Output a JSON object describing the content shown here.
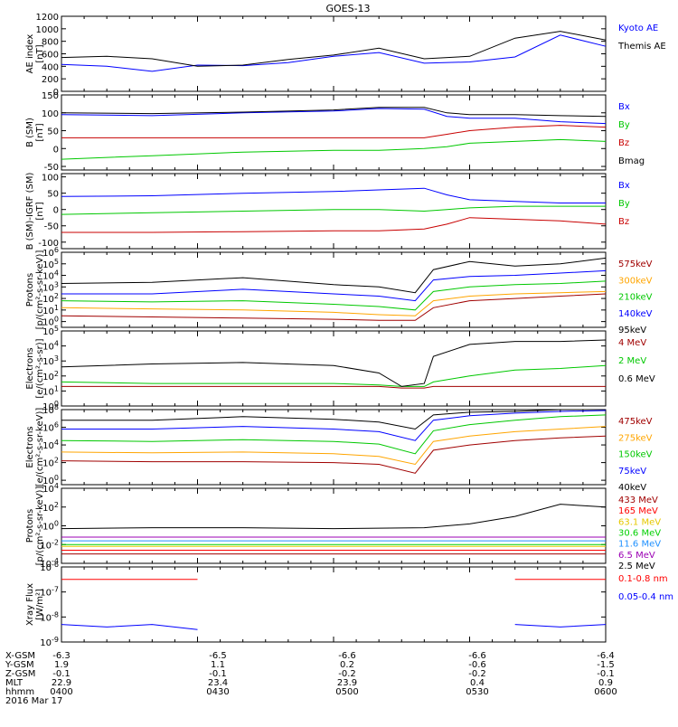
{
  "title": "GOES-13",
  "colors": {
    "black": "#000000",
    "blue": "#0000ff",
    "green": "#00c800",
    "red": "#c80000",
    "orange": "#ffa500",
    "gold": "#e6c800",
    "lime": "#00d000",
    "sky": "#1e90ff",
    "purple": "#9b00b4",
    "darkred": "#a00000",
    "brightred": "#ff0000"
  },
  "footer": {
    "row_labels": [
      "X-GSM",
      "Y-GSM",
      "Z-GSM",
      "MLT",
      "hhmm",
      "2016 Mar 17"
    ],
    "columns": [
      {
        "x": "-6.3",
        "y": "1.9",
        "z": "-0.1",
        "mlt": "22.9",
        "hhmm": "0400"
      },
      {
        "x": "-6.5",
        "y": "1.1",
        "z": "-0.1",
        "mlt": "23.4",
        "hhmm": "0430"
      },
      {
        "x": "-6.6",
        "y": "0.2",
        "z": "-0.2",
        "mlt": "23.9",
        "hhmm": "0500"
      },
      {
        "x": "-6.6",
        "y": "-0.6",
        "z": "-0.2",
        "mlt": "0.4",
        "hhmm": "0530"
      },
      {
        "x": "-6.4",
        "y": "-1.5",
        "z": "-0.1",
        "mlt": "0.9",
        "hhmm": "0600"
      }
    ]
  },
  "chart_data": [
    {
      "type": "line",
      "ylabel": "AE index\n[nT]",
      "ylim": [
        0,
        1200
      ],
      "yscale": "linear",
      "yticks": [
        "1200",
        "1000",
        "800",
        "600",
        "400",
        "200",
        "0"
      ],
      "x": [
        0,
        10,
        20,
        30,
        40,
        50,
        60,
        70,
        80,
        90,
        100,
        110,
        120
      ],
      "series": [
        {
          "name": "Kyoto AE",
          "color": "blue",
          "values": [
            430,
            400,
            320,
            420,
            410,
            460,
            560,
            620,
            450,
            470,
            550,
            900,
            720
          ]
        },
        {
          "name": "Themis AE",
          "color": "black",
          "values": [
            540,
            560,
            520,
            400,
            420,
            510,
            580,
            690,
            520,
            560,
            850,
            960,
            820
          ]
        }
      ]
    },
    {
      "type": "line",
      "ylabel": "B (SM)\n[nT]",
      "ylim": [
        -60,
        150
      ],
      "yscale": "linear",
      "yticks": [
        "150",
        "100",
        "50",
        "0",
        "-50"
      ],
      "x": [
        0,
        20,
        40,
        60,
        70,
        80,
        85,
        90,
        100,
        110,
        120
      ],
      "series": [
        {
          "name": "Bx",
          "color": "blue",
          "values": [
            95,
            92,
            100,
            105,
            112,
            110,
            90,
            85,
            85,
            75,
            70
          ]
        },
        {
          "name": "By",
          "color": "green",
          "values": [
            -30,
            -20,
            -10,
            -5,
            -5,
            0,
            5,
            15,
            20,
            25,
            20
          ]
        },
        {
          "name": "Bz",
          "color": "red",
          "values": [
            30,
            30,
            30,
            30,
            30,
            30,
            40,
            50,
            60,
            65,
            60
          ]
        },
        {
          "name": "Bmag",
          "color": "black",
          "values": [
            100,
            98,
            102,
            108,
            115,
            115,
            100,
            95,
            95,
            92,
            90
          ]
        }
      ]
    },
    {
      "type": "line",
      "ylabel": "B (SM)-IGRF (SM)\n[nT]",
      "ylim": [
        -120,
        110
      ],
      "yscale": "linear",
      "yticks": [
        "100",
        "50",
        "0",
        "-50",
        "-100"
      ],
      "x": [
        0,
        20,
        40,
        60,
        70,
        80,
        85,
        90,
        100,
        110,
        120
      ],
      "series": [
        {
          "name": "Bx",
          "color": "blue",
          "values": [
            40,
            42,
            50,
            55,
            60,
            65,
            45,
            30,
            25,
            20,
            20
          ]
        },
        {
          "name": "By",
          "color": "green",
          "values": [
            -15,
            -10,
            -5,
            0,
            0,
            -5,
            0,
            5,
            10,
            10,
            10
          ]
        },
        {
          "name": "Bz",
          "color": "red",
          "values": [
            -70,
            -70,
            -68,
            -65,
            -65,
            -60,
            -45,
            -25,
            -30,
            -35,
            -45
          ]
        }
      ]
    },
    {
      "type": "line",
      "ylabel": "Protons\n[p/(cm²-s-sr-keV)]",
      "ylim": [
        -0.5,
        6
      ],
      "yscale": "log",
      "yticks": [
        "10^6",
        "10^5",
        "10^4",
        "10^3",
        "10^2",
        "10^1",
        "10^0"
      ],
      "x": [
        0,
        20,
        40,
        60,
        70,
        78,
        82,
        90,
        100,
        110,
        120
      ],
      "series": [
        {
          "name": "575keV",
          "color": "darkred",
          "values": [
            0.5,
            0.4,
            0.3,
            0.2,
            0.1,
            0.1,
            1.2,
            1.8,
            2.0,
            2.2,
            2.4
          ]
        },
        {
          "name": "300keV",
          "color": "orange",
          "values": [
            1.2,
            1.1,
            1.0,
            0.8,
            0.6,
            0.5,
            1.8,
            2.2,
            2.4,
            2.5,
            2.6
          ]
        },
        {
          "name": "210keV",
          "color": "green",
          "values": [
            1.8,
            1.7,
            1.8,
            1.5,
            1.3,
            1.0,
            2.6,
            3.0,
            3.2,
            3.3,
            3.5
          ]
        },
        {
          "name": "140keV",
          "color": "blue",
          "values": [
            2.4,
            2.4,
            2.8,
            2.4,
            2.2,
            1.8,
            3.6,
            3.9,
            4.0,
            4.2,
            4.4
          ]
        },
        {
          "name": "95keV",
          "color": "black",
          "values": [
            3.3,
            3.4,
            3.8,
            3.2,
            3.0,
            2.5,
            4.5,
            5.2,
            4.8,
            5.0,
            5.5
          ]
        }
      ]
    },
    {
      "type": "line",
      "ylabel": "Electrons\n[e/(cm²-s-sr)]",
      "ylim": [
        0,
        5
      ],
      "yscale": "log",
      "yticks": [
        "10^5",
        "10^4",
        "10^3",
        "10^2",
        "10^1",
        "10^0"
      ],
      "x": [
        0,
        20,
        40,
        60,
        70,
        75,
        80,
        82,
        90,
        100,
        110,
        120
      ],
      "series": [
        {
          "name": "4 MeV",
          "color": "darkred",
          "values": [
            1.3,
            1.3,
            1.3,
            1.3,
            1.3,
            1.2,
            1.2,
            1.3,
            1.3,
            1.3,
            1.3,
            1.3
          ]
        },
        {
          "name": "2 MeV",
          "color": "green",
          "values": [
            1.6,
            1.5,
            1.5,
            1.5,
            1.4,
            1.3,
            1.3,
            1.6,
            2.0,
            2.4,
            2.5,
            2.7
          ]
        },
        {
          "name": "0.6 MeV",
          "color": "black",
          "values": [
            2.6,
            2.8,
            2.9,
            2.7,
            2.2,
            1.3,
            1.5,
            3.3,
            4.1,
            4.3,
            4.3,
            4.4
          ]
        }
      ]
    },
    {
      "type": "line",
      "ylabel": "Electrons\n[e/(cm²-s-sr-keV)]",
      "ylim": [
        -0.5,
        8
      ],
      "yscale": "log",
      "yticks": [
        "10^8",
        "10^6",
        "10^4",
        "10^2",
        "10^0"
      ],
      "x": [
        0,
        20,
        40,
        60,
        70,
        78,
        82,
        90,
        100,
        110,
        120
      ],
      "series": [
        {
          "name": "475keV",
          "color": "darkred",
          "values": [
            2.2,
            2.1,
            2.1,
            2.0,
            1.8,
            0.8,
            3.4,
            4.0,
            4.5,
            4.8,
            5.0
          ]
        },
        {
          "name": "275keV",
          "color": "orange",
          "values": [
            3.2,
            3.1,
            3.2,
            3.0,
            2.7,
            1.8,
            4.4,
            5.0,
            5.5,
            5.8,
            6.1
          ]
        },
        {
          "name": "150keV",
          "color": "green",
          "values": [
            4.5,
            4.4,
            4.6,
            4.4,
            4.1,
            3.0,
            5.6,
            6.3,
            6.8,
            7.2,
            7.4
          ]
        },
        {
          "name": "75keV",
          "color": "blue",
          "values": [
            5.8,
            5.8,
            6.1,
            5.8,
            5.5,
            4.5,
            6.8,
            7.3,
            7.6,
            7.8,
            7.9
          ]
        },
        {
          "name": "40keV",
          "color": "black",
          "values": [
            6.8,
            6.8,
            7.2,
            6.9,
            6.6,
            5.8,
            7.4,
            7.7,
            7.8,
            8.0,
            8.0
          ]
        }
      ]
    },
    {
      "type": "line",
      "ylabel": "Protons\n[p/(cm²-s-sr-keV)]",
      "ylim": [
        -4,
        4
      ],
      "yscale": "log",
      "yticks": [
        "10^4",
        "10^2",
        "10^0",
        "10^-2",
        "10^-4"
      ],
      "x": [
        0,
        20,
        40,
        60,
        80,
        90,
        100,
        110,
        120
      ],
      "series": [
        {
          "name": "433 MeV",
          "color": "darkred",
          "values": [
            -3.0,
            -3.0,
            -3.0,
            -3.0,
            -3.0,
            -3.0,
            -3.0,
            -3.0,
            -3.0
          ]
        },
        {
          "name": "165 MeV",
          "color": "brightred",
          "values": [
            -2.6,
            -2.6,
            -2.6,
            -2.6,
            -2.6,
            -2.6,
            -2.6,
            -2.6,
            -2.6
          ]
        },
        {
          "name": "63.1 MeV",
          "color": "gold",
          "values": [
            -2.2,
            -2.2,
            -2.2,
            -2.2,
            -2.2,
            -2.2,
            -2.2,
            -2.2,
            -2.2
          ]
        },
        {
          "name": "30.6 MeV",
          "color": "lime",
          "values": [
            -2.0,
            -2.0,
            -2.0,
            -2.0,
            -2.0,
            -2.0,
            -2.0,
            -2.0,
            -2.0
          ]
        },
        {
          "name": "11.6 MeV",
          "color": "sky",
          "values": [
            -1.6,
            -1.6,
            -1.6,
            -1.6,
            -1.6,
            -1.6,
            -1.6,
            -1.6,
            -1.6
          ]
        },
        {
          "name": "6.5 MeV",
          "color": "purple",
          "values": [
            -1.2,
            -1.2,
            -1.2,
            -1.2,
            -1.2,
            -1.2,
            -1.2,
            -1.2,
            -1.2
          ]
        },
        {
          "name": "2.5 MeV",
          "color": "black",
          "values": [
            -0.3,
            -0.2,
            -0.2,
            -0.3,
            -0.2,
            0.2,
            1.0,
            2.3,
            2.0
          ]
        }
      ]
    },
    {
      "type": "line",
      "ylabel": "Xray Flux\n[W/m²]",
      "ylim": [
        -9,
        -6
      ],
      "yscale": "log",
      "yticks": [
        "10^-6",
        "10^-7",
        "10^-8",
        "10^-9"
      ],
      "x": [
        0,
        10,
        20,
        30,
        40,
        50,
        60,
        70,
        80,
        90,
        100,
        110,
        120
      ],
      "series": [
        {
          "name": "0.1-0.8 nm",
          "color": "brightred",
          "values": [
            -6.5,
            -6.5,
            -6.5,
            -6.5,
            null,
            null,
            null,
            null,
            null,
            null,
            -6.5,
            -6.5,
            -6.5
          ]
        },
        {
          "name": "0.05-0.4 nm",
          "color": "blue",
          "values": [
            -8.3,
            -8.4,
            -8.3,
            -8.5,
            null,
            null,
            null,
            null,
            null,
            null,
            -8.3,
            -8.4,
            -8.3
          ]
        }
      ]
    }
  ]
}
